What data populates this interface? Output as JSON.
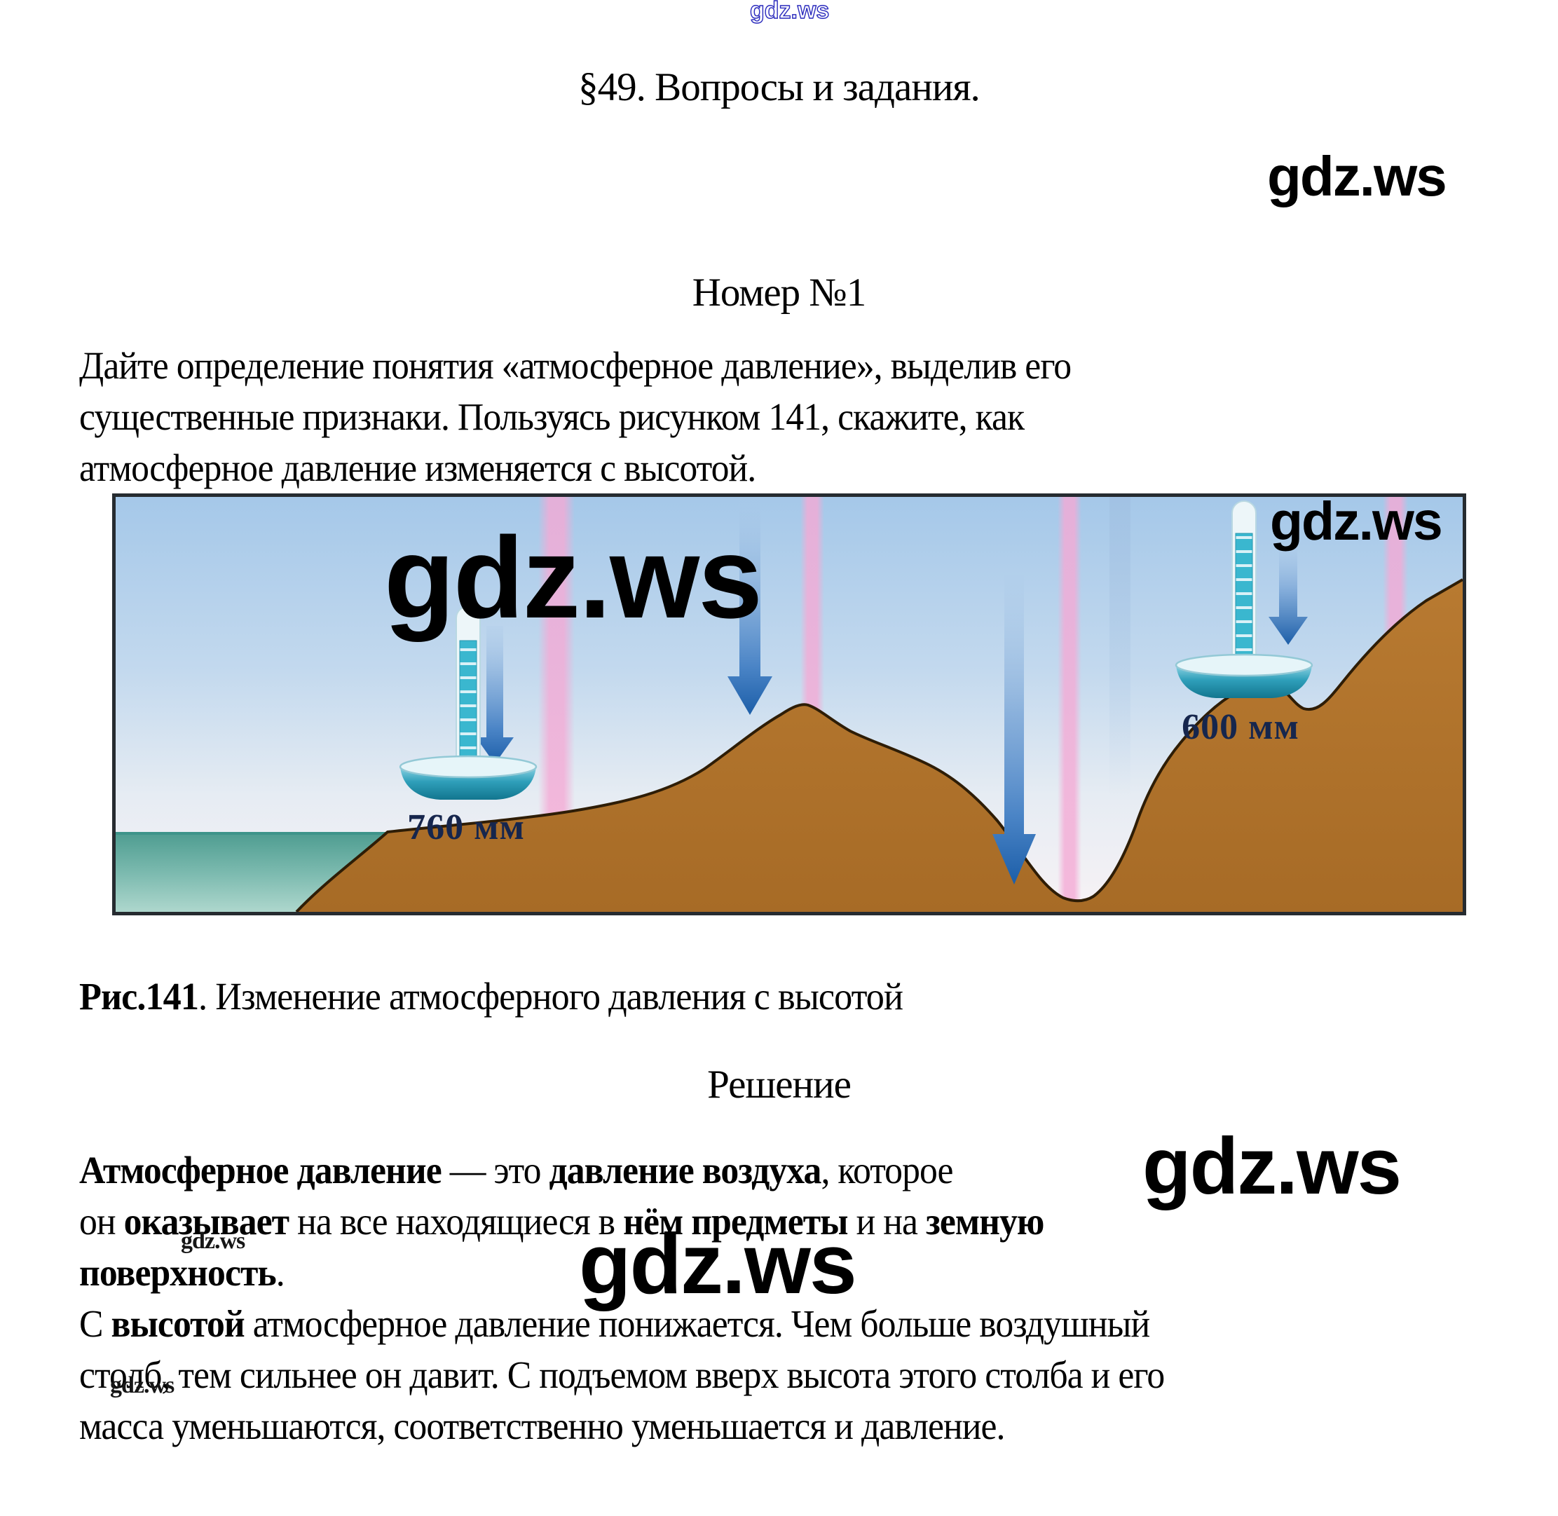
{
  "watermark": {
    "label": "gdz.ws"
  },
  "page": {
    "title": "§49. Вопросы и задания.",
    "task_heading": "Номер №1",
    "solution_heading": "Решение"
  },
  "question": {
    "lines": [
      [
        {
          "t": "Дайте определение понятия «атмосферное давление», выделив его",
          "b": 0
        }
      ],
      [
        {
          "t": "существенные признаки. Пользуясь рисунком 141, скажите, как",
          "b": 0
        }
      ],
      [
        {
          "t": "атмосферное давление изменяется с высотой.",
          "b": 0
        }
      ]
    ]
  },
  "figure": {
    "caption": [
      [
        {
          "t": "Рис.141",
          "b": 1
        },
        {
          "t": ". Изменение атмосферного давления с высотой",
          "b": 0
        }
      ]
    ],
    "sea_level_pressure_label": "760 мм",
    "mountain_pressure_label": "600 мм",
    "colors": {
      "sky_blue_top": "#a5c8e9",
      "sea_teal": "#4d9c90",
      "terrain_brown": "#b2732c",
      "stripe_pink": "#f4aad5",
      "arrow_blue": "#2e6db5",
      "label_navy": "#16264d"
    }
  },
  "answer": {
    "lines": [
      [
        {
          "t": "Атмосферное давление",
          "b": 1
        },
        {
          "t": " — это ",
          "b": 0
        },
        {
          "t": "давление воздуха",
          "b": 1
        },
        {
          "t": ", которое",
          "b": 0
        }
      ],
      [
        {
          "t": "он ",
          "b": 0
        },
        {
          "t": "оказывает",
          "b": 1
        },
        {
          "t": " на все находящиеся в ",
          "b": 0
        },
        {
          "t": "нём предметы",
          "b": 1
        },
        {
          "t": " и на ",
          "b": 0
        },
        {
          "t": "земную",
          "b": 1
        }
      ],
      [
        {
          "t": "поверхность",
          "b": 1
        },
        {
          "t": ".",
          "b": 0
        }
      ],
      [
        {
          "t": "С ",
          "b": 0
        },
        {
          "t": "высотой",
          "b": 1
        },
        {
          "t": " атмосферное давление понижается. Чем больше воздушный",
          "b": 0
        }
      ],
      [
        {
          "t": "столб, тем сильнее он давит. С подъемом вверх высота этого столба и его",
          "b": 0
        }
      ],
      [
        {
          "t": "масса уменьшаются, соответственно уменьшается и давление.",
          "b": 0
        }
      ]
    ]
  }
}
